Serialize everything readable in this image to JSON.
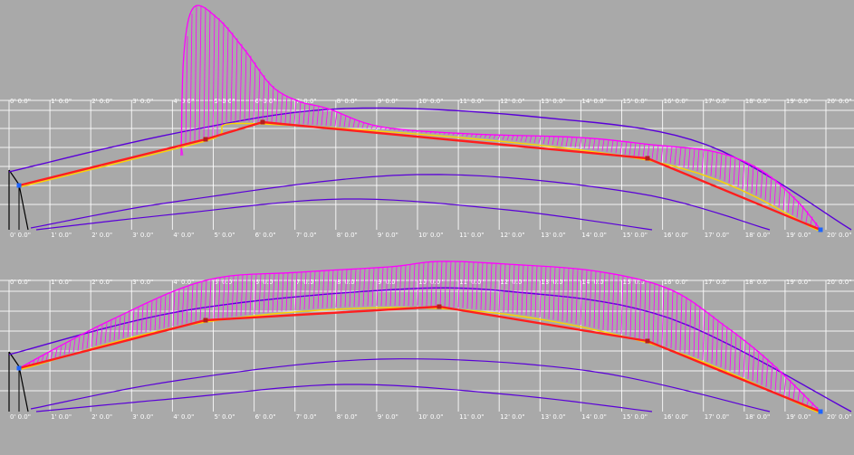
{
  "colors": {
    "background": "#a9a9a9",
    "grid": "#ffffff",
    "comb": "#ff00ff",
    "curve_primary": "#ff1e1e",
    "curve_guide": "#ffd200",
    "curve_reference": "#5a00d8",
    "endpoint_handle": "#1e64ff",
    "control_point": "#b41e1e"
  },
  "axis": {
    "tick_labels": [
      "0' 0.0\"",
      "1' 0.0\"",
      "2' 0.0\"",
      "3' 0.0\"",
      "4' 0.0\"",
      "5' 0.0\"",
      "6' 0.0\"",
      "7' 0.0\"",
      "8' 0.0\"",
      "9' 0.0\"",
      "10' 0.0\"",
      "11' 0.0\"",
      "12' 0.0\"",
      "13' 0.0\"",
      "14' 0.0\"",
      "15' 0.0\"",
      "16' 0.0\"",
      "17' 0.0\"",
      "18' 0.0\"",
      "19' 0.0\"",
      "20' 0.0\""
    ]
  },
  "panels": [
    {
      "name": "top",
      "control_point_feet": [
        0,
        4.7,
        6.05,
        15.6,
        20.0
      ]
    },
    {
      "name": "bottom",
      "control_point_feet": [
        0,
        4.7,
        10.4,
        15.6,
        20.0
      ]
    }
  ]
}
